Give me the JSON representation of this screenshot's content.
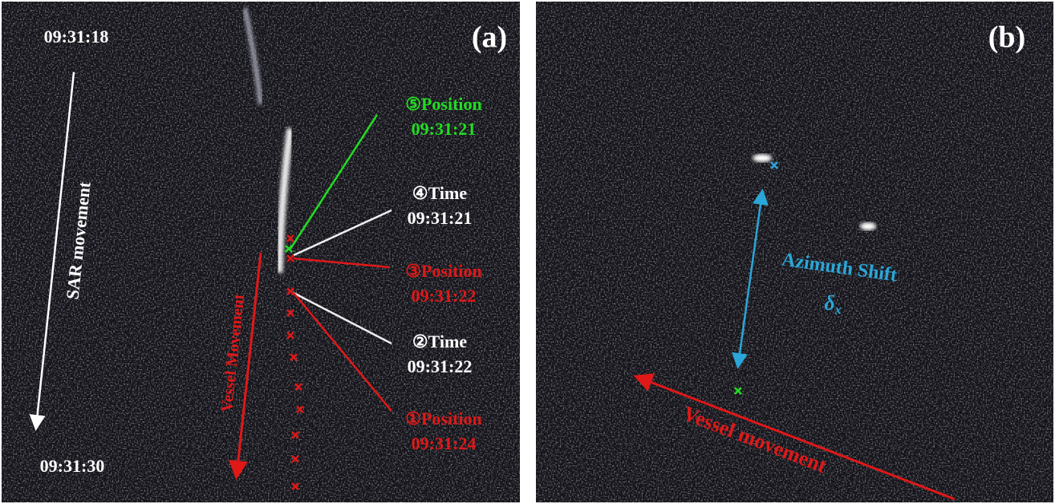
{
  "panels": [
    {
      "label": "(a)",
      "start_time": "09:31:18",
      "end_time": "09:31:30",
      "sar_movement": "SAR movement",
      "vessel_movement": "Vessel Movement",
      "annotations": [
        {
          "title": "⑤Position",
          "time": "09:31:21"
        },
        {
          "title": "④Time",
          "time": "09:31:21"
        },
        {
          "title": "③Position",
          "time": "09:31:22"
        },
        {
          "title": "②Time",
          "time": "09:31:22"
        },
        {
          "title": "①Position",
          "time": "09:31:24"
        }
      ]
    },
    {
      "label": "(b)",
      "azimuth_shift": "Azimuth Shift",
      "delta": "δ",
      "delta_sub": "x",
      "vessel_movement": "Vessel movement"
    }
  ]
}
